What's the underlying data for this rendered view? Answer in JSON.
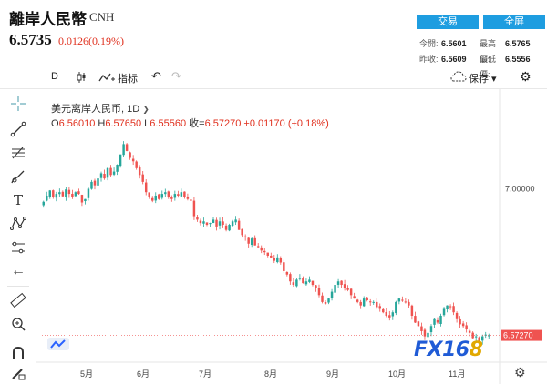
{
  "header": {
    "title": "離岸人民幣",
    "symbol": "CNH",
    "price": "6.5735",
    "change": "0.0126(0.19%)",
    "buttons": {
      "trade": "交易",
      "fullscreen": "全屏"
    },
    "quote": {
      "open_label": "今開:",
      "open": "6.5601",
      "high_label": "最高價:",
      "high": "6.5765",
      "prev_label": "昨收:",
      "prev": "6.5609",
      "low_label": "最低價:",
      "low": "6.5556"
    }
  },
  "toolbar": {
    "interval": "D",
    "indicator_label": "指标",
    "save_label": "保存",
    "icons": [
      "candlestick-icon",
      "indicator-icon",
      "undo-icon",
      "redo-icon",
      "cloud-icon",
      "gear-icon"
    ]
  },
  "left_tools": [
    "crosshair-icon",
    "trendline-icon",
    "fib-icon",
    "brush-icon",
    "text-icon",
    "pattern-icon",
    "measure-icon",
    "back-arrow-icon",
    "ruler-icon",
    "zoom-icon",
    "magnet-icon",
    "lock-pen-icon"
  ],
  "legend": {
    "name": "美元离岸人民币",
    "interval": "1D",
    "open_label": "O",
    "open": "6.56010",
    "high_label": "H",
    "high": "6.57650",
    "low_label": "L",
    "low": "6.55560",
    "close_label": "收=",
    "close": "6.57270",
    "change": "+0.01170",
    "change_pct": "(+0.18%)"
  },
  "watermark": {
    "part_a": "FX16",
    "part_b": "8"
  },
  "colors": {
    "up": "#26a69a",
    "down": "#ef5350",
    "accent": "#1e9de0",
    "price_tag": "#ef5350"
  },
  "chart_data": {
    "type": "candlestick",
    "y_ticks": [
      "7.00000"
    ],
    "current_price_label": "6.57270",
    "x_ticks": [
      "5月",
      "6月",
      "7月",
      "8月",
      "9月",
      "10月",
      "11月"
    ],
    "ylim": [
      6.5,
      7.2
    ],
    "series_close": [
      6.962,
      6.98,
      6.995,
      6.975,
      6.985,
      6.99,
      6.978,
      6.998,
      6.985,
      6.975,
      6.99,
      6.985,
      6.96,
      6.97,
      7.0,
      7.02,
      7.01,
      7.03,
      7.045,
      7.03,
      7.06,
      7.04,
      7.05,
      7.07,
      7.1,
      7.13,
      7.11,
      7.09,
      7.08,
      7.06,
      7.04,
      7.02,
      6.99,
      6.975,
      6.965,
      6.98,
      6.97,
      6.985,
      6.99,
      6.975,
      6.97,
      6.985,
      6.98,
      6.99,
      6.975,
      6.97,
      6.965,
      6.92,
      6.91,
      6.9,
      6.905,
      6.895,
      6.9,
      6.91,
      6.89,
      6.905,
      6.895,
      6.88,
      6.895,
      6.905,
      6.91,
      6.88,
      6.865,
      6.86,
      6.84,
      6.855,
      6.835,
      6.83,
      6.82,
      6.815,
      6.805,
      6.8,
      6.79,
      6.8,
      6.785,
      6.76,
      6.75,
      6.73,
      6.72,
      6.735,
      6.74,
      6.725,
      6.73,
      6.735,
      6.72,
      6.71,
      6.69,
      6.67,
      6.665,
      6.68,
      6.7,
      6.72,
      6.73,
      6.72,
      6.71,
      6.705,
      6.69,
      6.68,
      6.67,
      6.66,
      6.68,
      6.675,
      6.67,
      6.67,
      6.655,
      6.65,
      6.64,
      6.63,
      6.625,
      6.64,
      6.67,
      6.68,
      6.675,
      6.67,
      6.66,
      6.63,
      6.61,
      6.6,
      6.585,
      6.57,
      6.58,
      6.6,
      6.62,
      6.61,
      6.63,
      6.65,
      6.66,
      6.655,
      6.64,
      6.62,
      6.605,
      6.6,
      6.59,
      6.58,
      6.565,
      6.57,
      6.555,
      6.57,
      6.575,
      6.573
    ]
  }
}
